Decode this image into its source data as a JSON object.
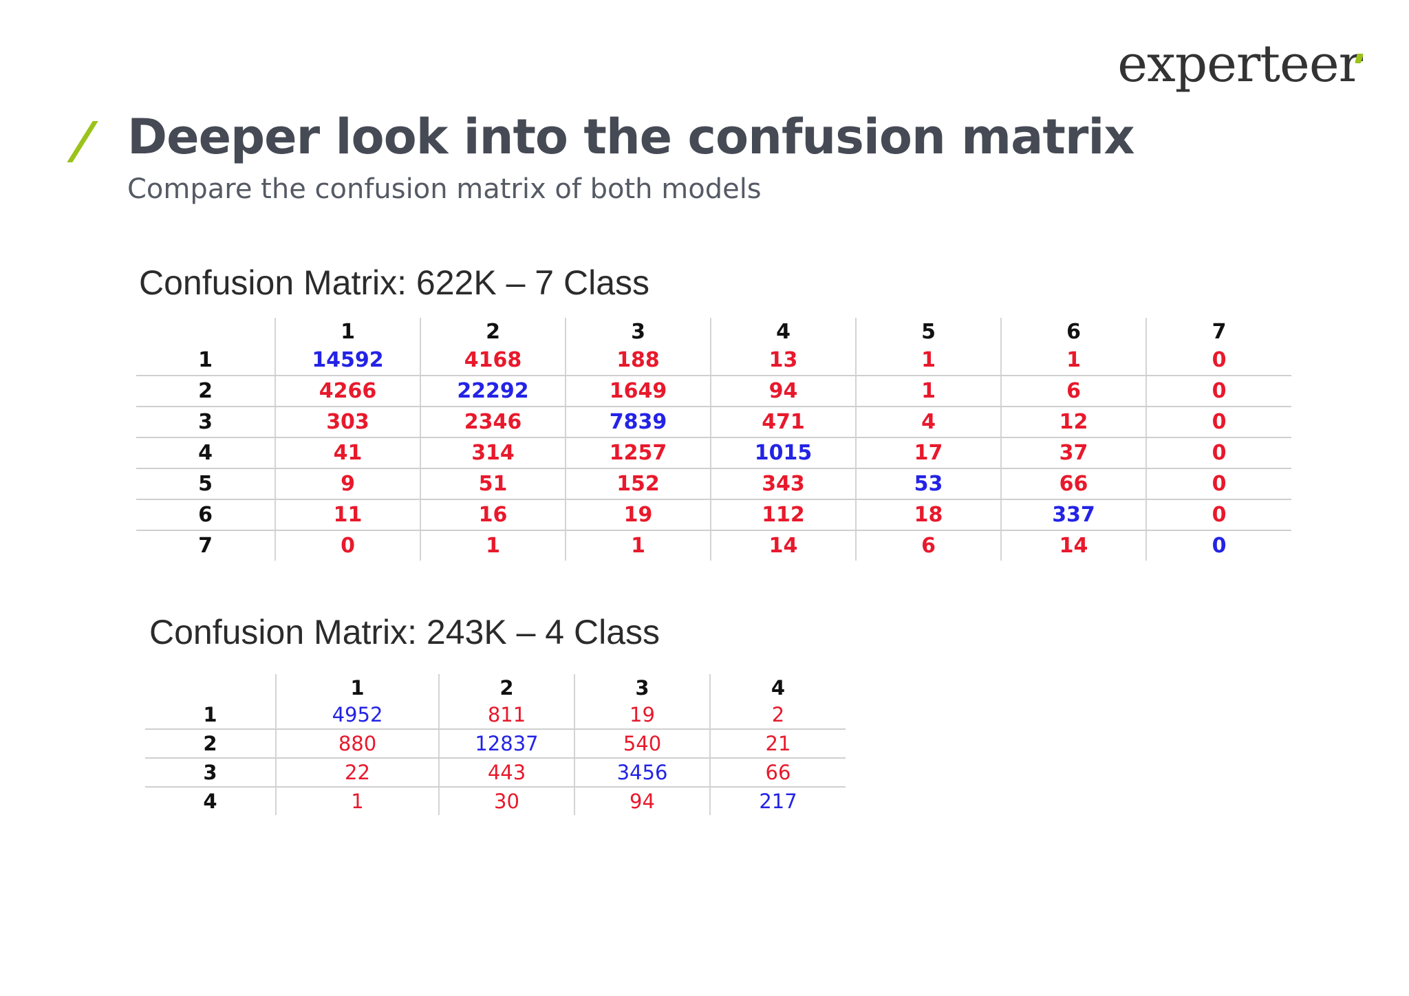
{
  "logo": {
    "text": "experteer",
    "accent_color": "#9bc31b"
  },
  "slide": {
    "title": "Deeper look into the confusion matrix",
    "subtitle": "Compare the confusion matrix of both models"
  },
  "colors": {
    "diagonal": "#2323e6",
    "off_diagonal": "#e8192c"
  },
  "matrix_7class": {
    "heading": "Confusion Matrix: 622K – 7 Class",
    "col_labels": [
      "1",
      "2",
      "3",
      "4",
      "5",
      "6",
      "7"
    ],
    "rows": [
      {
        "label": "1",
        "values": [
          "14592",
          "4168",
          "188",
          "13",
          "1",
          "1",
          "0"
        ]
      },
      {
        "label": "2",
        "values": [
          "4266",
          "22292",
          "1649",
          "94",
          "1",
          "6",
          "0"
        ]
      },
      {
        "label": "3",
        "values": [
          "303",
          "2346",
          "7839",
          "471",
          "4",
          "12",
          "0"
        ]
      },
      {
        "label": "4",
        "values": [
          "41",
          "314",
          "1257",
          "1015",
          "17",
          "37",
          "0"
        ]
      },
      {
        "label": "5",
        "values": [
          "9",
          "51",
          "152",
          "343",
          "53",
          "66",
          "0"
        ]
      },
      {
        "label": "6",
        "values": [
          "11",
          "16",
          "19",
          "112",
          "18",
          "337",
          "0"
        ]
      },
      {
        "label": "7",
        "values": [
          "0",
          "1",
          "1",
          "14",
          "6",
          "14",
          "0"
        ]
      }
    ]
  },
  "matrix_4class": {
    "heading": "Confusion Matrix: 243K – 4 Class",
    "col_labels": [
      "1",
      "2",
      "3",
      "4"
    ],
    "rows": [
      {
        "label": "1",
        "values": [
          "4952",
          "811",
          "19",
          "2"
        ]
      },
      {
        "label": "2",
        "values": [
          "880",
          "12837",
          "540",
          "21"
        ]
      },
      {
        "label": "3",
        "values": [
          "22",
          "443",
          "3456",
          "66"
        ]
      },
      {
        "label": "4",
        "values": [
          "1",
          "30",
          "94",
          "217"
        ]
      }
    ]
  }
}
